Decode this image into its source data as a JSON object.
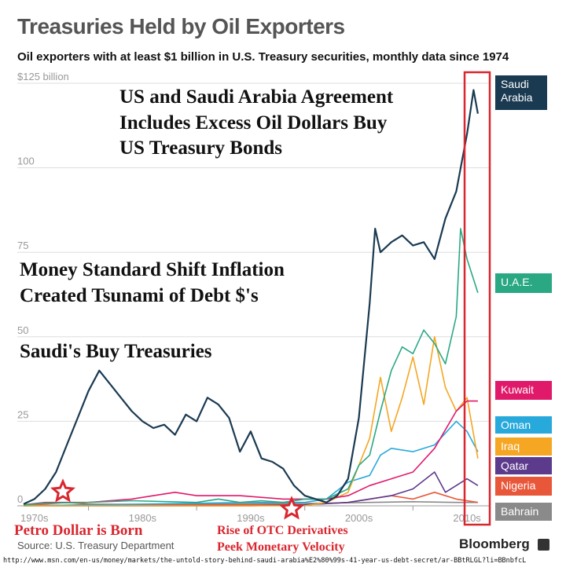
{
  "header": {
    "title": "Treasuries Held by Oil Exporters",
    "subtitle": "Oil exporters with at least $1 billion in U.S. Treasury securities,  monthly data since 1974"
  },
  "annotations": {
    "agreement": [
      "US and Saudi Arabia Agreement",
      "Includes Excess Oil Dollars Buy",
      "US Treasury Bonds"
    ],
    "money_standard": [
      "Money Standard Shift Inflation",
      "Created Tsunami of Debt $'s"
    ],
    "saudi_buy": "Saudi's Buy Treasuries",
    "petro_dollar": "Petro Dollar is Born",
    "otc": [
      "Rise of OTC Derivatives",
      "Peek Monetary Velocity"
    ]
  },
  "footer": {
    "source": "Source: U.S. Treasury Department",
    "brand": "Bloomberg",
    "url": "http://www.msn.com/en-us/money/markets/the-untold-story-behind-saudi-arabia%E2%80%99s-41-year-us-debt-secret/ar-BBtRLGL?li=BBnbfcL"
  },
  "colors": {
    "annotation_red": "#d9262f",
    "highlight_box": "#d9262f",
    "grid": "#dddddd"
  },
  "chart_data": {
    "type": "line",
    "x_range": [
      1974,
      2016.3
    ],
    "ylim": [
      0,
      125
    ],
    "y_ticks": [
      0,
      25,
      50,
      75,
      100,
      125
    ],
    "y_tick_labels": [
      "0",
      "25",
      "50",
      "75",
      "100",
      "$125 billion"
    ],
    "x_ticks": [
      1970,
      1980,
      1990,
      2000,
      2010
    ],
    "x_tick_labels": [
      "1970s",
      "1980s",
      "1990s",
      "2000s",
      "2010s"
    ],
    "grid": true,
    "legend_position": "right",
    "series": [
      {
        "name": "Saudi Arabia",
        "color": "#1a3a52",
        "points": [
          [
            1974,
            0.5
          ],
          [
            1975,
            2
          ],
          [
            1976,
            5
          ],
          [
            1977,
            10
          ],
          [
            1978,
            18
          ],
          [
            1979,
            26
          ],
          [
            1980,
            34
          ],
          [
            1981,
            40
          ],
          [
            1982,
            36
          ],
          [
            1983,
            32
          ],
          [
            1984,
            28
          ],
          [
            1985,
            25
          ],
          [
            1986,
            23
          ],
          [
            1987,
            24
          ],
          [
            1988,
            21
          ],
          [
            1989,
            27
          ],
          [
            1990,
            25
          ],
          [
            1991,
            32
          ],
          [
            1992,
            30
          ],
          [
            1993,
            26
          ],
          [
            1994,
            16
          ],
          [
            1995,
            22
          ],
          [
            1996,
            14
          ],
          [
            1997,
            13
          ],
          [
            1998,
            11
          ],
          [
            1999,
            6
          ],
          [
            2000,
            3
          ],
          [
            2001,
            2
          ],
          [
            2002,
            1
          ],
          [
            2003,
            3
          ],
          [
            2004,
            8
          ],
          [
            2005,
            26
          ],
          [
            2006,
            60
          ],
          [
            2006.5,
            82
          ],
          [
            2007,
            75
          ],
          [
            2008,
            78
          ],
          [
            2009,
            80
          ],
          [
            2010,
            77
          ],
          [
            2011,
            78
          ],
          [
            2012,
            73
          ],
          [
            2013,
            85
          ],
          [
            2014,
            93
          ],
          [
            2015,
            110
          ],
          [
            2015.6,
            123
          ],
          [
            2016,
            116
          ]
        ]
      },
      {
        "name": "U.A.E.",
        "color": "#2aa884",
        "points": [
          [
            1974,
            0.3
          ],
          [
            1976,
            0.8
          ],
          [
            1980,
            1
          ],
          [
            1984,
            1.5
          ],
          [
            1990,
            1
          ],
          [
            1992,
            2
          ],
          [
            1994,
            1
          ],
          [
            1996,
            1.5
          ],
          [
            1998,
            1
          ],
          [
            2000,
            2
          ],
          [
            2002,
            2
          ],
          [
            2004,
            5
          ],
          [
            2005,
            12
          ],
          [
            2006,
            15
          ],
          [
            2007,
            28
          ],
          [
            2008,
            40
          ],
          [
            2009,
            47
          ],
          [
            2010,
            45
          ],
          [
            2011,
            52
          ],
          [
            2012,
            48
          ],
          [
            2013,
            42
          ],
          [
            2014,
            56
          ],
          [
            2014.4,
            82
          ],
          [
            2015,
            73
          ],
          [
            2016,
            63
          ]
        ]
      },
      {
        "name": "Kuwait",
        "color": "#e0196a",
        "points": [
          [
            1974,
            0.3
          ],
          [
            1976,
            1
          ],
          [
            1980,
            1
          ],
          [
            1984,
            2
          ],
          [
            1986,
            3
          ],
          [
            1988,
            4
          ],
          [
            1990,
            3
          ],
          [
            1994,
            3
          ],
          [
            1998,
            2
          ],
          [
            2002,
            2
          ],
          [
            2004,
            3
          ],
          [
            2006,
            6
          ],
          [
            2008,
            8
          ],
          [
            2010,
            10
          ],
          [
            2012,
            17
          ],
          [
            2014,
            28
          ],
          [
            2015,
            31
          ],
          [
            2016,
            31
          ]
        ]
      },
      {
        "name": "Oman",
        "color": "#27a9dc",
        "points": [
          [
            1974,
            0
          ],
          [
            1985,
            0.5
          ],
          [
            1995,
            1
          ],
          [
            2000,
            1
          ],
          [
            2002,
            2
          ],
          [
            2004,
            7
          ],
          [
            2006,
            9
          ],
          [
            2007,
            15
          ],
          [
            2008,
            17
          ],
          [
            2010,
            16
          ],
          [
            2012,
            18
          ],
          [
            2014,
            25
          ],
          [
            2015,
            22
          ],
          [
            2016,
            16
          ]
        ]
      },
      {
        "name": "Iraq",
        "color": "#f5a623",
        "points": [
          [
            1974,
            0
          ],
          [
            1990,
            0
          ],
          [
            2000,
            0
          ],
          [
            2002,
            1
          ],
          [
            2004,
            4
          ],
          [
            2005,
            12
          ],
          [
            2006,
            20
          ],
          [
            2007,
            38
          ],
          [
            2008,
            22
          ],
          [
            2009,
            32
          ],
          [
            2010,
            44
          ],
          [
            2011,
            30
          ],
          [
            2012,
            50
          ],
          [
            2013,
            35
          ],
          [
            2014,
            28
          ],
          [
            2015,
            32
          ],
          [
            2016,
            14
          ]
        ]
      },
      {
        "name": "Qatar",
        "color": "#5c3a8c",
        "points": [
          [
            1974,
            0
          ],
          [
            1995,
            0
          ],
          [
            2000,
            0.3
          ],
          [
            2004,
            1
          ],
          [
            2006,
            2
          ],
          [
            2008,
            3
          ],
          [
            2010,
            5
          ],
          [
            2012,
            10
          ],
          [
            2013,
            4
          ],
          [
            2014,
            6
          ],
          [
            2015,
            8
          ],
          [
            2016,
            6
          ]
        ]
      },
      {
        "name": "Nigeria",
        "color": "#e8573a",
        "points": [
          [
            1974,
            0
          ],
          [
            1976,
            0.5
          ],
          [
            1978,
            1
          ],
          [
            1980,
            0.5
          ],
          [
            1990,
            0.3
          ],
          [
            2000,
            0.3
          ],
          [
            2004,
            1
          ],
          [
            2006,
            2
          ],
          [
            2008,
            3
          ],
          [
            2010,
            2
          ],
          [
            2012,
            4
          ],
          [
            2014,
            2
          ],
          [
            2016,
            1
          ]
        ]
      },
      {
        "name": "Bahrain",
        "color": "#8a8a8a",
        "points": [
          [
            1974,
            0
          ],
          [
            1980,
            0.3
          ],
          [
            1990,
            0.5
          ],
          [
            2000,
            0.7
          ],
          [
            2006,
            1
          ],
          [
            2010,
            1.2
          ],
          [
            2014,
            1
          ],
          [
            2016,
            1
          ]
        ]
      }
    ]
  }
}
